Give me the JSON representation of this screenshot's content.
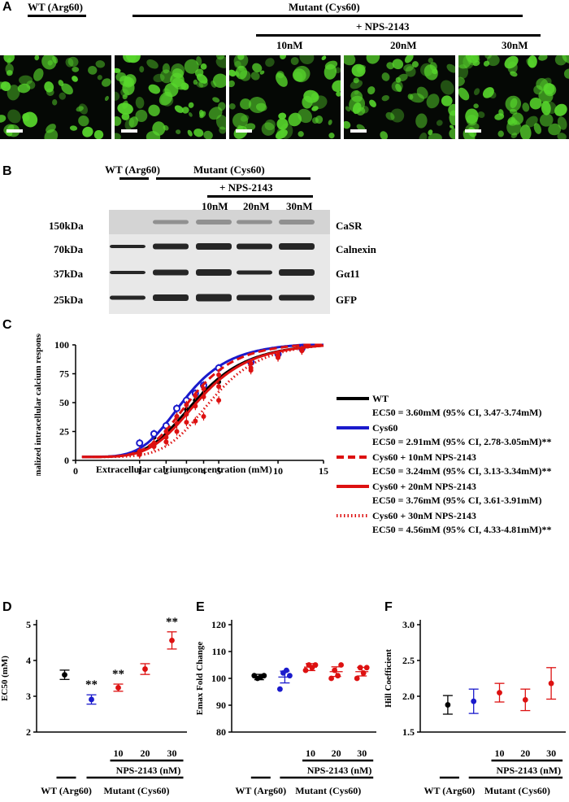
{
  "panel_a": {
    "letter": "A",
    "wt_label": "WT (Arg60)",
    "mutant_label": "Mutant (Cys60)",
    "nps_label": "+ NPS-2143",
    "doses": [
      "10nM",
      "20nM",
      "30nM"
    ]
  },
  "panel_b": {
    "letter": "B",
    "wt_label": "WT (Arg60)",
    "mutant_label": "Mutant (Cys60)",
    "nps_label": "+ NPS-2143",
    "doses": [
      "10nM",
      "20nM",
      "30nM"
    ],
    "rows": [
      {
        "kda": "150kDa",
        "protein": "CaSR"
      },
      {
        "kda": "70kDa",
        "protein": "Calnexin"
      },
      {
        "kda": "37kDa",
        "protein": "Gα11"
      },
      {
        "kda": "25kDa",
        "protein": "GFP"
      }
    ]
  },
  "panel_c": {
    "letter": "C",
    "ylabel": "Normalized intracellular calcium response (%)",
    "xlabel": "Extracellular calcium concentration (mM)",
    "yticks": [
      "0",
      "25",
      "50",
      "75",
      "100"
    ],
    "xticks": [
      "0",
      "1",
      "2",
      "3",
      "4",
      "5",
      "10",
      "15"
    ],
    "legend": [
      {
        "name": "WT",
        "ec": "EC50 = 3.60mM (95% CI, 3.47-3.74mM)"
      },
      {
        "name": "Cys60",
        "ec": "EC50 = 2.91mM (95% CI, 2.78-3.05mM)**"
      },
      {
        "name": "Cys60 + 10nM NPS-2143",
        "ec": "EC50 = 3.24mM (95% CI, 3.13-3.34mM)**"
      },
      {
        "name": "Cys60 + 20nM NPS-2143",
        "ec": "EC50 = 3.76mM (95% CI, 3.61-3.91mM)"
      },
      {
        "name": "Cys60 + 30nM NPS-2143",
        "ec": "EC50 = 4.56mM (95% CI, 4.33-4.81mM)**"
      }
    ]
  },
  "panel_d": {
    "letter": "D",
    "ylabel": "EC50 (mM)",
    "yticks": [
      "2",
      "3",
      "4",
      "5"
    ]
  },
  "panel_e": {
    "letter": "E",
    "ylabel": "Emax Fold Change",
    "yticks": [
      "80",
      "90",
      "100",
      "110",
      "120"
    ]
  },
  "panel_f": {
    "letter": "F",
    "ylabel": "Hill Coefficient",
    "yticks": [
      "1.5",
      "2.0",
      "2.5",
      "3.0"
    ]
  },
  "bottom_labels": {
    "wt": "WT (Arg60)",
    "mutant": "Mutant (Cys60)",
    "nps": "NPS-2143 (nM)",
    "doses": [
      "10",
      "20",
      "30"
    ]
  },
  "colors": {
    "wt": "#000000",
    "cys60": "#1a1acc",
    "nps": "#dd1111",
    "fluor": "#57d62c"
  },
  "chart_data": [
    {
      "type": "line",
      "x_scale": "log-like",
      "xlim": [
        0,
        15
      ],
      "ylim": [
        0,
        100
      ],
      "series": [
        {
          "name": "WT",
          "ec50": 3.6,
          "hill": 1.85,
          "x": [
            1,
            1.5,
            2,
            2.5,
            3,
            3.5,
            4,
            5,
            7.5,
            10,
            12.5
          ],
          "y": [
            6,
            20,
            29,
            38,
            44,
            52,
            58,
            68,
            84,
            91,
            96
          ]
        },
        {
          "name": "Cys60",
          "ec50": 2.91,
          "hill": 1.9,
          "x": [
            1,
            1.5,
            2,
            2.5,
            3,
            3.5,
            4,
            5,
            7.5,
            10,
            12.5
          ],
          "y": [
            15,
            23,
            30,
            45,
            52,
            58,
            65,
            80,
            85,
            92,
            97
          ]
        },
        {
          "name": "Cys60 + 10nM NPS-2143",
          "ec50": 3.24,
          "hill": 2.0,
          "x": [
            1,
            1.5,
            2,
            2.5,
            3,
            3.5,
            4,
            5,
            7.5,
            10,
            12.5
          ],
          "y": [
            8,
            15,
            25,
            38,
            48,
            56,
            62,
            74,
            84,
            91,
            96
          ]
        },
        {
          "name": "Cys60 + 20nM NPS-2143",
          "ec50": 3.76,
          "hill": 1.9,
          "x": [
            1,
            1.5,
            2,
            2.5,
            3,
            3.5,
            4,
            5,
            7.5,
            10,
            12.5
          ],
          "y": [
            6,
            13,
            20,
            32,
            40,
            47,
            55,
            64,
            80,
            89,
            95
          ]
        },
        {
          "name": "Cys60 + 30nM NPS-2143",
          "ec50": 4.56,
          "hill": 2.2,
          "x": [
            1,
            1.5,
            2,
            2.5,
            3,
            3.5,
            4,
            5,
            7.5,
            10,
            12.5
          ],
          "y": [
            5,
            12,
            16,
            25,
            33,
            34,
            38,
            52,
            78,
            90,
            95
          ]
        }
      ]
    },
    {
      "type": "scatter",
      "ylim": [
        2,
        5
      ],
      "categories": [
        "WT",
        "Cys60",
        "10",
        "20",
        "30"
      ],
      "values": [
        3.6,
        2.91,
        3.24,
        3.76,
        4.56
      ],
      "err": [
        0.13,
        0.13,
        0.1,
        0.15,
        0.24
      ],
      "significance": [
        "",
        "**",
        "**",
        "",
        "**"
      ]
    },
    {
      "type": "scatter",
      "ylim": [
        80,
        120
      ],
      "categories": [
        "WT",
        "Cys60",
        "10",
        "20",
        "30"
      ],
      "means": [
        100.5,
        100.5,
        104.2,
        102.5,
        102.5
      ],
      "err": [
        1.0,
        2.2,
        1.3,
        1.8,
        1.6
      ],
      "points": [
        [
          101,
          100,
          100.5,
          101
        ],
        [
          96,
          102,
          103,
          101
        ],
        [
          103,
          105,
          104,
          105
        ],
        [
          100,
          103,
          101,
          105
        ],
        [
          100,
          104,
          102,
          104
        ]
      ]
    },
    {
      "type": "scatter",
      "ylim": [
        1.5,
        3.0
      ],
      "categories": [
        "WT",
        "Cys60",
        "10",
        "20",
        "30"
      ],
      "values": [
        1.88,
        1.93,
        2.05,
        1.95,
        2.18
      ],
      "err": [
        0.13,
        0.17,
        0.13,
        0.15,
        0.22
      ]
    }
  ]
}
